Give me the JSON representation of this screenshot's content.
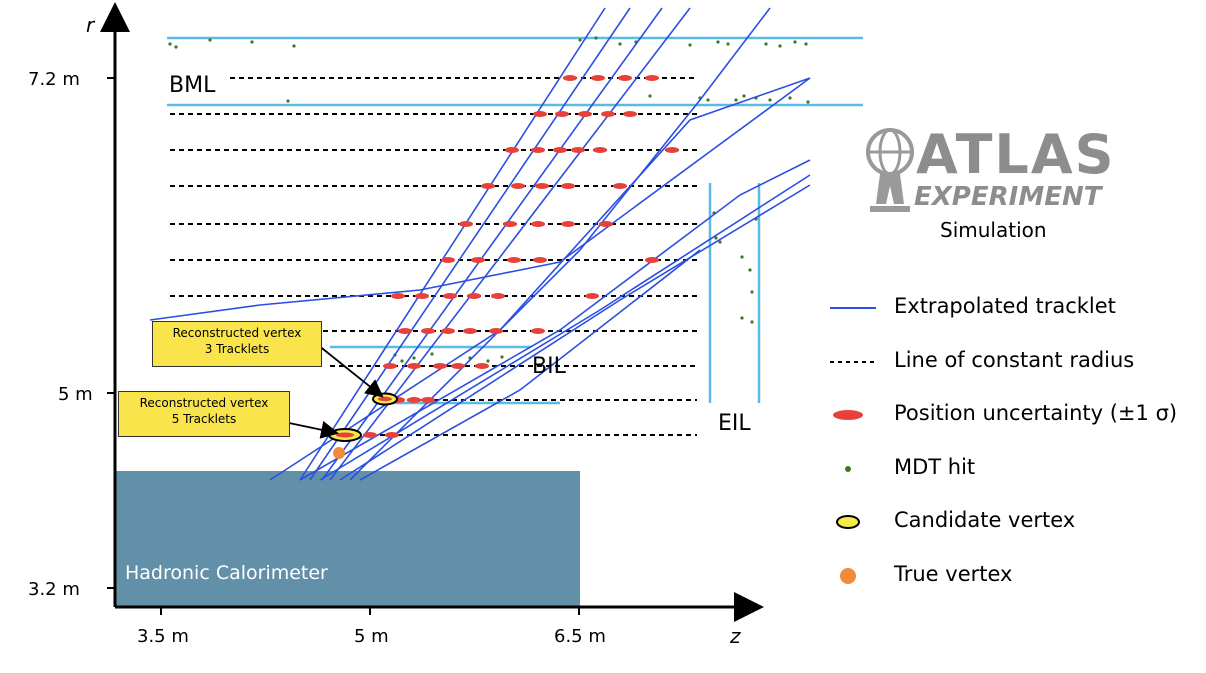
{
  "axes": {
    "r_label": "r",
    "z_label": "z",
    "r_ticks": [
      "7.2 m",
      "5 m",
      "3.2 m"
    ],
    "z_ticks": [
      "3.5 m",
      "5 m",
      "6.5 m"
    ]
  },
  "regions": {
    "calorimeter": "Hadronic Calorimeter",
    "bml": "BML",
    "bil": "BIL",
    "eil": "EIL"
  },
  "callouts": {
    "vertex_3_line1": "Reconstructed vertex",
    "vertex_3_line2": "3 Tracklets",
    "vertex_5_line1": "Reconstructed vertex",
    "vertex_5_line2": "5 Tracklets"
  },
  "logo": {
    "word": "ATLAS",
    "sub": "EXPERIMENT",
    "simulation": "Simulation"
  },
  "legend": {
    "items": [
      {
        "label": "Extrapolated tracklet",
        "icon": "blue-line"
      },
      {
        "label": "Line of constant radius",
        "icon": "dashed-line"
      },
      {
        "label": "Position uncertainty (±1 σ)",
        "icon": "red-ellipse"
      },
      {
        "label": "MDT hit",
        "icon": "green-dot"
      },
      {
        "label": "Candidate vertex",
        "icon": "yellow-ellipse"
      },
      {
        "label": "True vertex",
        "icon": "orange-dot"
      }
    ]
  },
  "colors": {
    "track": "#2b4fe0",
    "chamber": "#5bbbe8",
    "uncertainty": "#e8413a",
    "mdt_hit": "#3c7a1f",
    "candidate_vertex": "#f5e94a",
    "true_vertex": "#f08a3c",
    "calorimeter": "#6290a8",
    "callout": "#f9e44b"
  }
}
